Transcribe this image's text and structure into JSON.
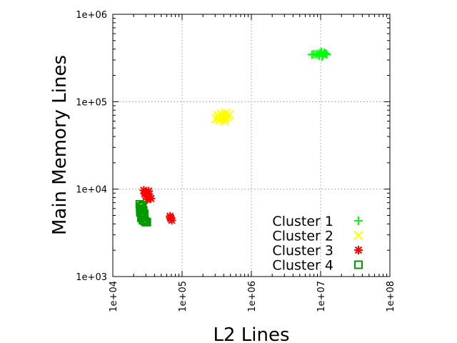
{
  "chart_data": {
    "type": "scatter",
    "title": "",
    "xlabel": "L2 Lines",
    "ylabel": "Main Memory Lines",
    "xscale": "log",
    "yscale": "log",
    "xlim": [
      10000,
      100000000
    ],
    "ylim": [
      1000,
      1000000
    ],
    "x_ticks": [
      "1e+04",
      "1e+05",
      "1e+06",
      "1e+07",
      "1e+08"
    ],
    "y_ticks": [
      "1e+03",
      "1e+04",
      "1e+05",
      "1e+06"
    ],
    "grid": true,
    "legend_position": "bottom-right",
    "series": [
      {
        "name": "Cluster 1",
        "marker": "plus",
        "color": "#00ff00",
        "points": [
          [
            7500000,
            345000
          ],
          [
            8000000,
            350000
          ],
          [
            8600000,
            348000
          ],
          [
            9200000,
            352000
          ],
          [
            9800000,
            360000
          ],
          [
            10300000,
            370000
          ],
          [
            10800000,
            340000
          ],
          [
            11300000,
            362000
          ],
          [
            11800000,
            355000
          ],
          [
            12300000,
            347000
          ],
          [
            10500000,
            330000
          ],
          [
            9500000,
            335000
          ]
        ]
      },
      {
        "name": "Cluster 2",
        "marker": "x",
        "color": "#ffff00",
        "points": [
          [
            310000,
            64000
          ],
          [
            330000,
            70000
          ],
          [
            350000,
            62000
          ],
          [
            370000,
            72000
          ],
          [
            390000,
            66000
          ],
          [
            410000,
            60000
          ],
          [
            430000,
            74000
          ],
          [
            450000,
            68000
          ],
          [
            480000,
            71000
          ],
          [
            340000,
            66000
          ],
          [
            400000,
            69000
          ],
          [
            360000,
            63000
          ],
          [
            420000,
            65000
          ],
          [
            380000,
            70000
          ]
        ]
      },
      {
        "name": "Cluster 3",
        "marker": "asterisk",
        "color": "#ff0000",
        "points": [
          [
            28000,
            9700
          ],
          [
            29500,
            9300
          ],
          [
            31000,
            9000
          ],
          [
            32500,
            8600
          ],
          [
            34000,
            8200
          ],
          [
            35500,
            7800
          ],
          [
            30000,
            8400
          ],
          [
            33000,
            9500
          ],
          [
            29000,
            8800
          ],
          [
            31500,
            7600
          ],
          [
            67000,
            4900
          ],
          [
            69000,
            4600
          ],
          [
            71000,
            4400
          ],
          [
            68000,
            4700
          ]
        ]
      },
      {
        "name": "Cluster 4",
        "marker": "square",
        "color": "#009900",
        "points": [
          [
            24500,
            6700
          ],
          [
            25500,
            6300
          ],
          [
            26500,
            6000
          ],
          [
            27500,
            5700
          ],
          [
            25000,
            5400
          ],
          [
            26000,
            5100
          ],
          [
            27000,
            4800
          ],
          [
            28000,
            4500
          ],
          [
            29000,
            4300
          ],
          [
            30000,
            4200
          ],
          [
            31000,
            4200
          ],
          [
            24800,
            5900
          ],
          [
            26800,
            6500
          ],
          [
            28500,
            5200
          ],
          [
            25800,
            4700
          ],
          [
            27200,
            4400
          ]
        ]
      }
    ]
  }
}
